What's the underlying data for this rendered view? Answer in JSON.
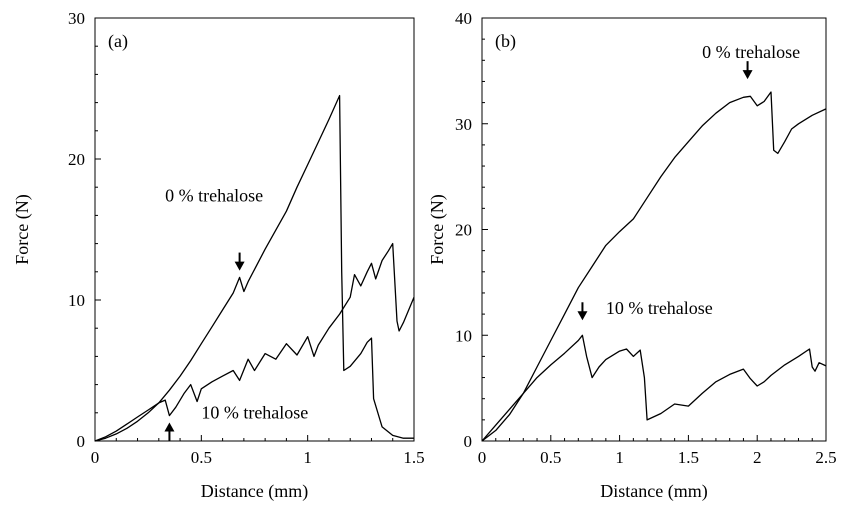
{
  "chart_data": [
    {
      "type": "line",
      "panel_label": "(a)",
      "xlabel": "Distance (mm)",
      "ylabel": "Force (N)",
      "xlim": [
        0,
        1.5
      ],
      "ylim": [
        0,
        30
      ],
      "xticks": [
        0,
        0.5,
        1,
        1.5
      ],
      "xtick_labels": [
        "0",
        "0.5",
        "1",
        "1.5"
      ],
      "yticks": [
        0,
        10,
        20,
        30
      ],
      "ytick_labels": [
        "0",
        "10",
        "20",
        "30"
      ],
      "grid": false,
      "series": [
        {
          "name": "0 % trehalose",
          "x": [
            0,
            0.05,
            0.1,
            0.15,
            0.2,
            0.25,
            0.3,
            0.35,
            0.4,
            0.45,
            0.5,
            0.55,
            0.6,
            0.65,
            0.68,
            0.7,
            0.72,
            0.8,
            0.9,
            0.95,
            1.0,
            1.05,
            1.1,
            1.15,
            1.16,
            1.17,
            1.2,
            1.25,
            1.28,
            1.3,
            1.31,
            1.35,
            1.4,
            1.45,
            1.5
          ],
          "y": [
            0,
            0.2,
            0.5,
            0.9,
            1.4,
            2.0,
            2.7,
            3.6,
            4.6,
            5.7,
            6.9,
            8.1,
            9.3,
            10.5,
            11.6,
            10.6,
            11.3,
            13.6,
            16.3,
            18.0,
            19.6,
            21.2,
            22.8,
            24.5,
            12.0,
            5.0,
            5.3,
            6.2,
            7.0,
            7.3,
            3.0,
            1.0,
            0.4,
            0.2,
            0.2
          ]
        },
        {
          "name": "10 % trehalose",
          "x": [
            0,
            0.05,
            0.1,
            0.15,
            0.2,
            0.25,
            0.3,
            0.33,
            0.35,
            0.38,
            0.42,
            0.45,
            0.48,
            0.5,
            0.55,
            0.6,
            0.65,
            0.68,
            0.72,
            0.75,
            0.8,
            0.85,
            0.9,
            0.95,
            1.0,
            1.03,
            1.05,
            1.1,
            1.15,
            1.2,
            1.22,
            1.25,
            1.28,
            1.3,
            1.32,
            1.35,
            1.38,
            1.4,
            1.42,
            1.43,
            1.45,
            1.5
          ],
          "y": [
            0,
            0.3,
            0.7,
            1.2,
            1.7,
            2.2,
            2.7,
            2.9,
            1.8,
            2.4,
            3.4,
            4.0,
            2.8,
            3.7,
            4.2,
            4.6,
            5.0,
            4.3,
            5.8,
            5.0,
            6.2,
            5.8,
            6.9,
            6.1,
            7.4,
            6.0,
            6.8,
            8.0,
            9.0,
            10.2,
            11.8,
            11.0,
            12.0,
            12.6,
            11.5,
            12.8,
            13.5,
            14.0,
            8.5,
            7.8,
            8.4,
            10.2
          ]
        }
      ],
      "annotations": [
        {
          "text": "0 % trehalose",
          "x": 0.33,
          "y": 17.0
        },
        {
          "text": "10 % trehalose",
          "x": 0.5,
          "y": 1.6
        }
      ],
      "arrows": [
        {
          "x": 0.68,
          "y": 12.3,
          "direction": "down"
        },
        {
          "x": 0.35,
          "y": 1.1,
          "direction": "up"
        }
      ]
    },
    {
      "type": "line",
      "panel_label": "(b)",
      "xlabel": "Distance (mm)",
      "ylabel": "Force (N)",
      "xlim": [
        0,
        2.5
      ],
      "ylim": [
        0,
        40
      ],
      "xticks": [
        0,
        0.5,
        1,
        1.5,
        2,
        2.5
      ],
      "xtick_labels": [
        "0",
        "0.5",
        "1",
        "1.5",
        "2",
        "2.5"
      ],
      "yticks": [
        0,
        10,
        20,
        30,
        40
      ],
      "ytick_labels": [
        "0",
        "10",
        "20",
        "30",
        "40"
      ],
      "grid": false,
      "series": [
        {
          "name": "0 % trehalose",
          "x": [
            0,
            0.1,
            0.2,
            0.3,
            0.4,
            0.5,
            0.6,
            0.7,
            0.8,
            0.9,
            1.0,
            1.1,
            1.2,
            1.3,
            1.4,
            1.5,
            1.6,
            1.7,
            1.8,
            1.9,
            1.95,
            2.0,
            2.05,
            2.1,
            2.12,
            2.15,
            2.2,
            2.25,
            2.3,
            2.4,
            2.5
          ],
          "y": [
            0,
            1.0,
            2.5,
            4.5,
            7.0,
            9.5,
            12.0,
            14.5,
            16.5,
            18.5,
            19.8,
            21.0,
            23.0,
            25.0,
            26.8,
            28.3,
            29.8,
            31.0,
            32.0,
            32.5,
            32.6,
            31.7,
            32.1,
            33.0,
            27.5,
            27.2,
            28.3,
            29.5,
            30.0,
            30.8,
            31.4
          ]
        },
        {
          "name": "10 % trehalose",
          "x": [
            0,
            0.1,
            0.2,
            0.3,
            0.4,
            0.5,
            0.6,
            0.7,
            0.73,
            0.76,
            0.8,
            0.85,
            0.9,
            1.0,
            1.05,
            1.1,
            1.15,
            1.18,
            1.2,
            1.3,
            1.4,
            1.5,
            1.6,
            1.7,
            1.8,
            1.9,
            1.95,
            2.0,
            2.05,
            2.1,
            2.2,
            2.3,
            2.38,
            2.4,
            2.42,
            2.45,
            2.5
          ],
          "y": [
            0,
            1.5,
            3.0,
            4.5,
            6.0,
            7.2,
            8.3,
            9.5,
            10.0,
            8.0,
            6.0,
            7.0,
            7.7,
            8.5,
            8.7,
            8.0,
            8.6,
            6.0,
            2.0,
            2.6,
            3.5,
            3.3,
            4.5,
            5.6,
            6.3,
            6.8,
            5.9,
            5.2,
            5.6,
            6.2,
            7.2,
            8.0,
            8.7,
            7.0,
            6.6,
            7.4,
            7.1
          ]
        }
      ],
      "annotations": [
        {
          "text": "0 % trehalose",
          "x": 1.6,
          "y": 36.2
        },
        {
          "text": "10 % trehalose",
          "x": 0.9,
          "y": 12.0
        }
      ],
      "arrows": [
        {
          "x": 1.93,
          "y": 34.5,
          "direction": "down"
        },
        {
          "x": 0.73,
          "y": 11.7,
          "direction": "down"
        }
      ]
    }
  ]
}
